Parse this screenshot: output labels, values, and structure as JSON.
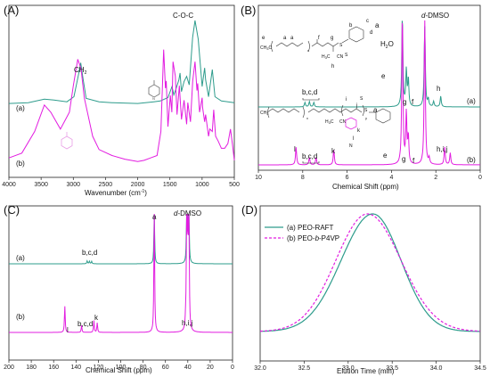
{
  "colors": {
    "teal": "#2e9c8c",
    "magenta": "#e21ce0",
    "axis": "#222222"
  },
  "chart_data": [
    {
      "type": "line",
      "panel": "(A)",
      "xlabel": "Wavenumber (cm⁻¹)",
      "xlim": [
        4000,
        500
      ],
      "xticks": [
        4000,
        3500,
        3000,
        2500,
        2000,
        1500,
        1000,
        500
      ],
      "annotations": [
        "CH₂",
        "C-O-C"
      ],
      "series": [
        {
          "name": "(a)",
          "color": "#2e9c8c",
          "points": [
            [
              4000,
              2
            ],
            [
              3700,
              3
            ],
            [
              3450,
              7
            ],
            [
              3300,
              6
            ],
            [
              3100,
              4
            ],
            [
              2990,
              10
            ],
            [
              2920,
              36
            ],
            [
              2885,
              50
            ],
            [
              2850,
              32
            ],
            [
              2800,
              8
            ],
            [
              2600,
              4
            ],
            [
              2400,
              3
            ],
            [
              2000,
              2
            ],
            [
              1750,
              4
            ],
            [
              1650,
              5
            ],
            [
              1530,
              9
            ],
            [
              1467,
              22
            ],
            [
              1440,
              12
            ],
            [
              1410,
              18
            ],
            [
              1360,
              30
            ],
            [
              1343,
              38
            ],
            [
              1320,
              16
            ],
            [
              1280,
              28
            ],
            [
              1240,
              34
            ],
            [
              1200,
              24
            ],
            [
              1147,
              80
            ],
            [
              1110,
              100
            ],
            [
              1060,
              78
            ],
            [
              1000,
              22
            ],
            [
              960,
              44
            ],
            [
              945,
              30
            ],
            [
              900,
              10
            ],
            [
              842,
              42
            ],
            [
              800,
              10
            ],
            [
              700,
              5
            ],
            [
              600,
              4
            ],
            [
              500,
              3
            ]
          ]
        },
        {
          "name": "(b)",
          "color": "#e21ce0",
          "points": [
            [
              4000,
              8
            ],
            [
              3800,
              12
            ],
            [
              3600,
              30
            ],
            [
              3450,
              52
            ],
            [
              3350,
              46
            ],
            [
              3200,
              32
            ],
            [
              3120,
              40
            ],
            [
              3060,
              46
            ],
            [
              3000,
              68
            ],
            [
              2930,
              90
            ],
            [
              2880,
              82
            ],
            [
              2830,
              58
            ],
            [
              2700,
              26
            ],
            [
              2600,
              15
            ],
            [
              2400,
              10
            ],
            [
              2200,
              7
            ],
            [
              2000,
              5
            ],
            [
              1900,
              6
            ],
            [
              1800,
              8
            ],
            [
              1700,
              10
            ],
            [
              1640,
              30
            ],
            [
              1597,
              98
            ],
            [
              1570,
              66
            ],
            [
              1557,
              72
            ],
            [
              1530,
              34
            ],
            [
              1493,
              60
            ],
            [
              1470,
              46
            ],
            [
              1452,
              88
            ],
            [
              1416,
              76
            ],
            [
              1390,
              44
            ],
            [
              1353,
              68
            ],
            [
              1320,
              40
            ],
            [
              1280,
              56
            ],
            [
              1240,
              36
            ],
            [
              1222,
              54
            ],
            [
              1180,
              38
            ],
            [
              1146,
              72
            ],
            [
              1110,
              88
            ],
            [
              1080,
              64
            ],
            [
              1068,
              70
            ],
            [
              1040,
              46
            ],
            [
              1000,
              58
            ],
            [
              993,
              50
            ],
            [
              960,
              38
            ],
            [
              945,
              44
            ],
            [
              900,
              26
            ],
            [
              880,
              32
            ],
            [
              842,
              30
            ],
            [
              820,
              48
            ],
            [
              790,
              26
            ],
            [
              750,
              22
            ],
            [
              700,
              16
            ],
            [
              650,
              16
            ],
            [
              600,
              20
            ],
            [
              560,
              32
            ],
            [
              530,
              20
            ],
            [
              500,
              6
            ]
          ]
        }
      ]
    },
    {
      "type": "line",
      "panel": "(B)",
      "xlabel": "Chemical Shift (ppm)",
      "xlim": [
        10,
        0
      ],
      "xticks": [
        10,
        8,
        6,
        4,
        2,
        0
      ],
      "annotations": [
        "a",
        "d-DMSO",
        "H₂O",
        "e",
        "b,c,d",
        "f",
        "g",
        "h",
        "(a)",
        "a",
        "l",
        "b,c,d",
        "k",
        "e",
        "g",
        "f",
        "h,i,j",
        "(b)"
      ],
      "structure_labels": [
        "e",
        "a",
        "a",
        "f",
        "g",
        "b",
        "c",
        "d",
        "h",
        "i",
        "j",
        "k",
        "l"
      ],
      "series": [
        {
          "name": "(a)",
          "color": "#2e9c8c",
          "peaks": [
            [
              7.9,
              5
            ],
            [
              7.7,
              6
            ],
            [
              7.5,
              5
            ],
            [
              3.51,
              100
            ],
            [
              3.33,
              40
            ],
            [
              3.24,
              30
            ],
            [
              2.5,
              90
            ],
            [
              2.34,
              8
            ],
            [
              2.1,
              6
            ],
            [
              1.78,
              12
            ]
          ]
        },
        {
          "name": "(b)",
          "color": "#e21ce0",
          "peaks": [
            [
              8.3,
              12
            ],
            [
              7.7,
              5
            ],
            [
              7.4,
              5
            ],
            [
              6.6,
              10
            ],
            [
              3.51,
              100
            ],
            [
              3.33,
              34
            ],
            [
              3.24,
              18
            ],
            [
              2.5,
              98
            ],
            [
              2.3,
              4
            ],
            [
              1.6,
              12
            ],
            [
              1.35,
              8
            ]
          ]
        }
      ]
    },
    {
      "type": "line",
      "panel": "(C)",
      "xlabel": "Chemical Shift (ppm)",
      "xlim": [
        200,
        0
      ],
      "xticks": [
        200,
        180,
        160,
        140,
        120,
        100,
        80,
        60,
        40,
        20,
        0
      ],
      "annotations": [
        "a",
        "d-DMSO",
        "b,c,d",
        "(a)",
        "l",
        "b,c,d",
        "k",
        "h,i,j",
        "(b)"
      ],
      "series": [
        {
          "name": "(a)",
          "color": "#2e9c8c",
          "peaks": [
            [
              130,
              6
            ],
            [
              128,
              5
            ],
            [
              126,
              5
            ],
            [
              70,
              100
            ],
            [
              40,
              100
            ],
            [
              39,
              90
            ],
            [
              41,
              90
            ]
          ]
        },
        {
          "name": "(b)",
          "color": "#e21ce0",
          "peaks": [
            [
              150,
              22
            ],
            [
              135,
              6
            ],
            [
              124,
              10
            ],
            [
              121,
              8
            ],
            [
              70,
              100
            ],
            [
              40,
              95
            ],
            [
              39,
              88
            ],
            [
              41,
              88
            ],
            [
              42,
              6
            ]
          ]
        }
      ]
    },
    {
      "type": "line",
      "panel": "(D)",
      "xlabel": "Elution Time (min)",
      "xlim": [
        32.0,
        34.5
      ],
      "xticks": [
        "32.0",
        "32.5",
        "33.0",
        "33.5",
        "34.0",
        "34.5"
      ],
      "legend": {
        "placement": "top-left"
      },
      "series": [
        {
          "name": "(a) PEO-RAFT",
          "color": "#2e9c8c",
          "style": "solid",
          "peak": 33.28,
          "sigma_left": 0.36,
          "sigma_right": 0.32
        },
        {
          "name": "(b) PEO-b-P4VP",
          "color": "#e21ce0",
          "style": "dashed",
          "peak": 33.22,
          "sigma_left": 0.36,
          "sigma_right": 0.38
        }
      ]
    }
  ],
  "labels": {
    "panelA": "(A)",
    "panelB": "(B)",
    "panelC": "(C)",
    "panelD": "(D)",
    "a_xlabel_main": "Wavenumber (cm",
    "a_xlabel_sup": "-1",
    "a_xlabel_end": ")",
    "a_ch2": "CH",
    "a_ch2_sub": "2",
    "a_coc": "C-O-C",
    "b_a": "a",
    "b_dmso_d": "d",
    "b_dmso": "-DMSO",
    "b_h2o": "H",
    "b_h2o_sub": "2",
    "b_h2o_end": "O",
    "b_e": "e",
    "b_bcd_a": "b,c,d",
    "b_f_a": "f",
    "b_g_a": "g",
    "b_h_a": "h",
    "b_series_a": "(a)",
    "b_a2": "a",
    "b_l": "l",
    "b_bcd_b": "b,c,d",
    "b_k": "k",
    "b_e2": "e",
    "b_g2": "g",
    "b_f2": "f",
    "b_hij": "h,i,j",
    "b_series_b": "(b)",
    "c_a": "a",
    "c_dmso_d": "d",
    "c_dmso": "-DMSO",
    "c_bcd_a": "b,c,d",
    "c_series_a": "(a)",
    "c_l": "l",
    "c_bcd_b": "b,c,d",
    "c_k": "k",
    "c_hij": "h,i,j",
    "c_series_b": "(b)",
    "a_series_a": "(a)",
    "a_series_b": "(b)",
    "s_e": "e",
    "s_a1": "a",
    "s_a2": "a",
    "s_f": "f",
    "s_g": "g",
    "s_b": "b",
    "s_c": "c",
    "s_d": "d",
    "s_h": "h",
    "s_x1": "x",
    "s_ch2o1": "CH",
    "s_ch2o1b": "O",
    "s_h3c": "H",
    "s_cn": "CN",
    "s2_i": "i",
    "s2_j": "j",
    "s2_k": "k",
    "s2_l": "l",
    "s2_n": "N",
    "s2_cn": "CN",
    "s2_x": "x",
    "s2_y": "y",
    "s2_ch3": "CH",
    "s2_h3c": "H",
    "s_s1": "S",
    "s_s2": "S",
    "s2_s1": "S",
    "s2_s2": "S"
  }
}
